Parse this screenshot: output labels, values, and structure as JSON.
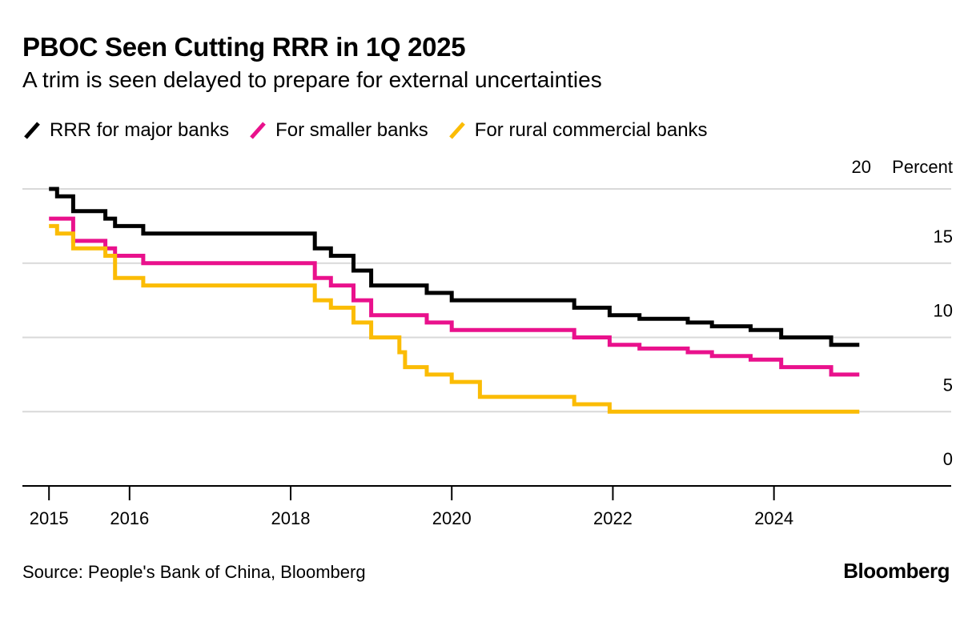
{
  "header": {
    "title": "PBOC Seen Cutting RRR in 1Q 2025",
    "subtitle": "A trim is seen delayed to prepare for external uncertainties"
  },
  "footer": {
    "source": "Source: People's Bank of China, Bloomberg",
    "brand": "Bloomberg"
  },
  "chart_data": {
    "type": "line",
    "title": "PBOC Seen Cutting RRR in 1Q 2025",
    "subtitle": "A trim is seen delayed to prepare for external uncertainties",
    "ylabel": "Percent",
    "xlabel": "",
    "ylim": [
      0,
      20
    ],
    "xlim": [
      2014.67,
      2026.2
    ],
    "y_ticks": [
      0,
      5,
      10,
      15,
      20
    ],
    "x_ticks": [
      2015,
      2016,
      2018,
      2020,
      2022,
      2024
    ],
    "grid": true,
    "legend_position": "top-left",
    "series": [
      {
        "name": "RRR for major banks",
        "color": "#000000",
        "step": true,
        "x": [
          2015.0,
          2015.1,
          2015.3,
          2015.7,
          2015.82,
          2016.17,
          2018.3,
          2018.5,
          2018.78,
          2019.0,
          2019.69,
          2020.0,
          2021.52,
          2021.96,
          2022.33,
          2022.93,
          2023.23,
          2023.71,
          2024.09,
          2024.71,
          2025.06
        ],
        "values": [
          20.0,
          19.5,
          18.5,
          18.0,
          17.5,
          17.0,
          16.0,
          15.5,
          14.5,
          13.5,
          13.0,
          12.5,
          12.0,
          11.5,
          11.25,
          11.0,
          10.75,
          10.5,
          10.0,
          9.5,
          9.5
        ]
      },
      {
        "name": "For smaller banks",
        "color": "#e9118c",
        "step": true,
        "x": [
          2015.0,
          2015.3,
          2015.7,
          2015.82,
          2016.17,
          2018.3,
          2018.5,
          2018.78,
          2019.0,
          2019.69,
          2020.0,
          2021.52,
          2021.96,
          2022.33,
          2022.93,
          2023.23,
          2023.71,
          2024.09,
          2024.71,
          2025.06
        ],
        "values": [
          18.0,
          16.5,
          16.0,
          15.5,
          15.0,
          14.0,
          13.5,
          12.5,
          11.5,
          11.0,
          10.5,
          10.0,
          9.5,
          9.25,
          9.0,
          8.75,
          8.5,
          8.0,
          7.5,
          7.5
        ]
      },
      {
        "name": "For rural commercial banks",
        "color": "#fbbc05",
        "step": true,
        "x": [
          2015.0,
          2015.1,
          2015.3,
          2015.7,
          2015.82,
          2016.17,
          2018.3,
          2018.5,
          2018.78,
          2019.0,
          2019.35,
          2019.42,
          2019.69,
          2020.0,
          2020.35,
          2021.52,
          2021.96,
          2025.06
        ],
        "values": [
          17.5,
          17.0,
          16.0,
          15.5,
          14.0,
          13.5,
          12.5,
          12.0,
          11.0,
          10.0,
          9.0,
          8.0,
          7.5,
          7.0,
          6.0,
          5.5,
          5.0,
          5.0
        ]
      }
    ]
  }
}
